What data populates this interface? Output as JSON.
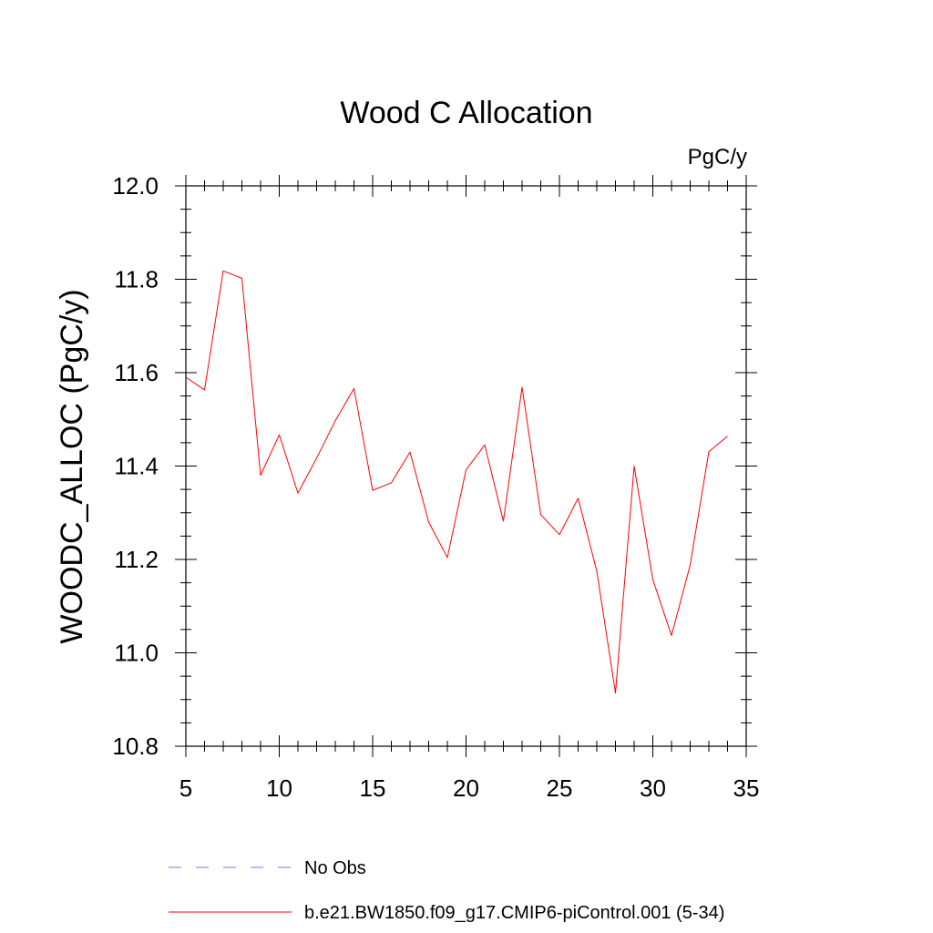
{
  "chart_data": {
    "type": "line",
    "title": "Wood C Allocation",
    "units_label": "PgC/y",
    "ylabel": "WOODC_ALLOC  (PgC/y)",
    "xlabel": "",
    "xlim": [
      5,
      35
    ],
    "ylim": [
      10.8,
      12.0
    ],
    "x_ticks": [
      5,
      10,
      15,
      20,
      25,
      30,
      35
    ],
    "y_ticks": [
      10.8,
      11.0,
      11.2,
      11.4,
      11.6,
      11.8,
      12.0
    ],
    "x_tick_labels": [
      "5",
      "10",
      "15",
      "20",
      "25",
      "30",
      "35"
    ],
    "y_tick_labels": [
      "10.8",
      "11.0",
      "11.2",
      "11.4",
      "11.6",
      "11.8",
      "12.0"
    ],
    "x_minor_step": 1,
    "y_minor_step": 0.05,
    "grid": false,
    "legend_placement": "bottom",
    "series": [
      {
        "name": "b.e21.BW1850.f09_g17.CMIP6-piControl.001 (5-34)",
        "color": "#ff0000",
        "dash": "solid",
        "x": [
          5,
          6,
          7,
          8,
          9,
          10,
          11,
          12,
          13,
          14,
          15,
          16,
          17,
          18,
          19,
          20,
          21,
          22,
          23,
          24,
          25,
          26,
          27,
          28,
          29,
          30,
          31,
          32,
          33,
          34
        ],
        "y": [
          11.59,
          11.563,
          11.818,
          11.802,
          11.38,
          11.467,
          11.342,
          11.417,
          11.497,
          11.566,
          11.348,
          11.364,
          11.43,
          11.28,
          11.204,
          11.392,
          11.445,
          11.282,
          11.569,
          11.296,
          11.253,
          11.331,
          11.175,
          10.914,
          11.4,
          11.157,
          11.037,
          11.188,
          11.431,
          11.464
        ]
      }
    ],
    "legend": [
      {
        "label": "No Obs",
        "color": "#7777dd",
        "dash": "dashed"
      },
      {
        "label": "b.e21.BW1850.f09_g17.CMIP6-piControl.001 (5-34)",
        "color": "#ff0000",
        "dash": "solid"
      }
    ]
  }
}
